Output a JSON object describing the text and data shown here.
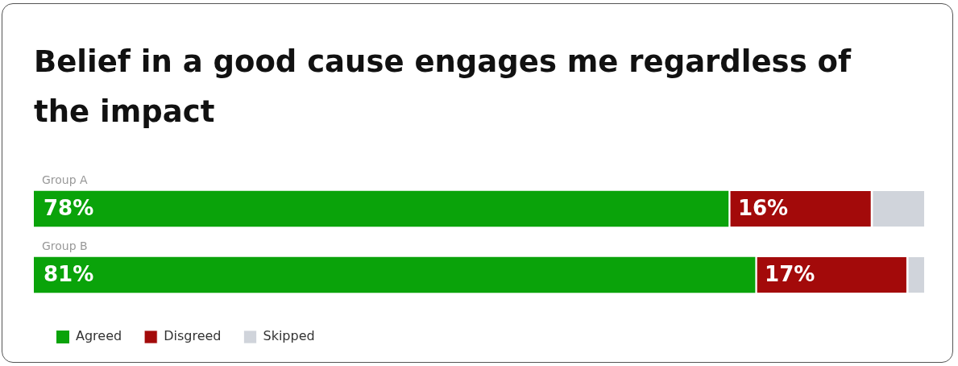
{
  "chart_data": {
    "type": "bar",
    "orientation": "horizontal",
    "stacked": true,
    "title": "Belief in a good cause engages me regardless of the impact",
    "categories": [
      "Group A",
      "Group B"
    ],
    "legend": "bottom",
    "series": [
      {
        "name": "Agreed",
        "color": "#0aa30a",
        "values": [
          78,
          81
        ],
        "value_labels": [
          "78%",
          "81%"
        ]
      },
      {
        "name": "Disgreed",
        "color": "#a30a0a",
        "values": [
          16,
          17
        ],
        "value_labels": [
          "16%",
          "17%"
        ]
      },
      {
        "name": "Skipped",
        "color": "#d0d4db",
        "values": [
          6,
          2
        ],
        "value_labels": [
          null,
          null
        ]
      }
    ]
  }
}
